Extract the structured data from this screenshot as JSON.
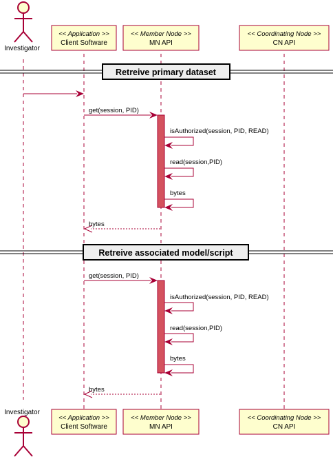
{
  "actors": [
    {
      "id": "investigator",
      "label": "Investigator"
    }
  ],
  "participants": [
    {
      "id": "client",
      "stereotype": "<< Application >>",
      "label": "Client Software"
    },
    {
      "id": "mn",
      "stereotype": "<< Member Node >>",
      "label": "MN API"
    },
    {
      "id": "cn",
      "stereotype": "<< Coordinating Node >>",
      "label": "CN API"
    }
  ],
  "sections": [
    {
      "title": "Retreive primary dataset",
      "messages": [
        {
          "from": "investigator",
          "to": "client",
          "label": "",
          "style": "solid"
        },
        {
          "from": "client",
          "to": "mn",
          "label": "get(session, PID)",
          "style": "solid"
        },
        {
          "from": "mn",
          "to": "mn",
          "label": "isAuthorized(session, PID, READ)",
          "style": "self"
        },
        {
          "from": "mn",
          "to": "mn",
          "label": "read(session,PID)",
          "style": "self"
        },
        {
          "from": "mn",
          "to": "mn",
          "label": "bytes",
          "style": "self"
        },
        {
          "from": "mn",
          "to": "client",
          "label": "bytes",
          "style": "dashed"
        }
      ]
    },
    {
      "title": "Retreive associated model/script",
      "messages": [
        {
          "from": "client",
          "to": "mn",
          "label": "get(session, PID)",
          "style": "solid"
        },
        {
          "from": "mn",
          "to": "mn",
          "label": "isAuthorized(session, PID, READ)",
          "style": "self"
        },
        {
          "from": "mn",
          "to": "mn",
          "label": "read(session,PID)",
          "style": "self"
        },
        {
          "from": "mn",
          "to": "mn",
          "label": "bytes",
          "style": "self"
        },
        {
          "from": "mn",
          "to": "client",
          "label": "bytes",
          "style": "dashed"
        }
      ]
    }
  ],
  "colors": {
    "line": "#A80036",
    "participant_fill": "#FEFECE",
    "activation_fill": "#D4525E",
    "divider_fill": "#EEEEEE"
  }
}
